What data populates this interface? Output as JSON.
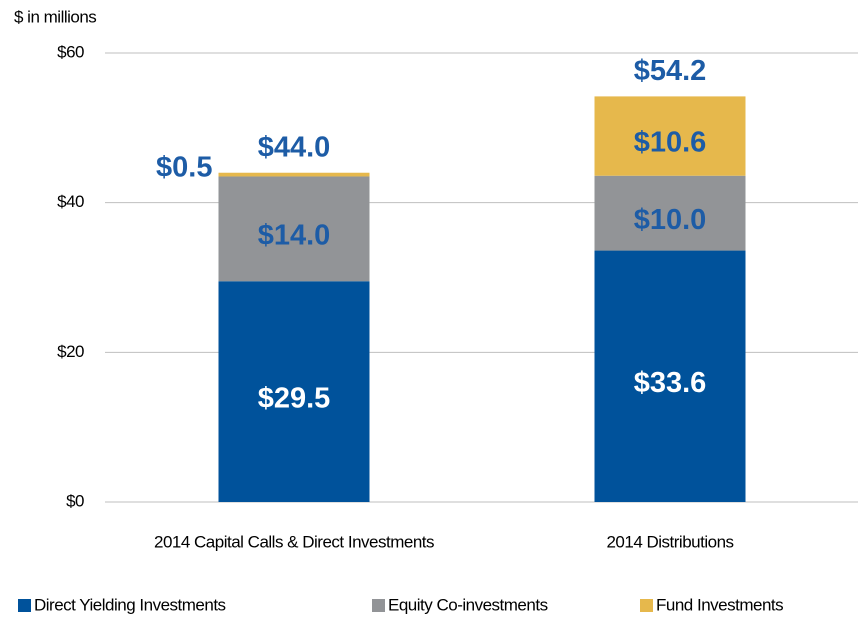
{
  "chart_data": {
    "type": "stacked_bar",
    "y_label": "$ in millions",
    "categories": [
      "2014 Capital Calls & Direct Investments",
      "2014 Distributions"
    ],
    "series": [
      {
        "name": "Direct Yielding Investments",
        "color": "#00529b",
        "label_color": "#ffffff",
        "values": [
          29.5,
          33.6
        ],
        "value_labels": [
          "$29.5",
          "$33.6"
        ]
      },
      {
        "name": "Equity Co-investments",
        "color": "#929497",
        "label_color": "#1d5ca6",
        "values": [
          14.0,
          10.0
        ],
        "value_labels": [
          "$14.0",
          "$10.0"
        ]
      },
      {
        "name": "Fund Investments",
        "color": "#e6b84c",
        "label_color": "#1d5ca6",
        "values": [
          0.5,
          10.6
        ],
        "value_labels": [
          "$0.5",
          "$10.6"
        ]
      }
    ],
    "totals": [
      44.0,
      54.2
    ],
    "total_labels": [
      "$44.0",
      "$54.2"
    ],
    "total_color": "#1d5ca6",
    "ylim": [
      0,
      60
    ],
    "yticks": [
      {
        "value": 0,
        "label": "$0"
      },
      {
        "value": 20,
        "label": "$20"
      },
      {
        "value": 40,
        "label": "$40"
      },
      {
        "value": 60,
        "label": "$60"
      }
    ],
    "grid": true,
    "legend": "bottom"
  }
}
